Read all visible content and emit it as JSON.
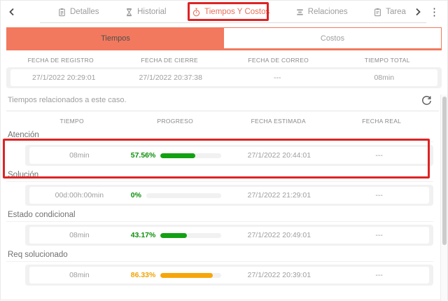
{
  "colors": {
    "salmon_accent": "#F2795E",
    "active_tab_text": "#E8705A",
    "annotation_red": "#DE2323",
    "green_bar": "#12A112",
    "green_text": "#0A8F0A",
    "orange_bar": "#F7A60A",
    "orange_text": "#EFA303"
  },
  "icons": {
    "back": "chevron-left",
    "forward": "chevron-right",
    "menu": "kebab-vertical-dots",
    "refresh": "circular-arrow",
    "detalles": "clipboard",
    "historial": "hourglass",
    "tiempos_y_costos": "stopwatch",
    "relaciones": "hierarchy-bars",
    "tarea": "task-clipboard"
  },
  "main_tabs": {
    "items": [
      {
        "label": "Detalles",
        "active": false
      },
      {
        "label": "Historial",
        "active": false
      },
      {
        "label": "Tiempos Y Costos",
        "active": true
      },
      {
        "label": "Relaciones",
        "active": false
      },
      {
        "label": "Tarea",
        "active": false
      }
    ]
  },
  "sub_tabs": {
    "left": "Tiempos",
    "right": "Costos",
    "active": "Tiempos"
  },
  "summary_table": {
    "headers": [
      "FECHA DE REGISTRO",
      "FECHA DE CIERRE",
      "FECHA DE CORREO",
      "TIEMPO TOTAL"
    ],
    "values": [
      "27/1/2022 20:29:01",
      "27/1/2022 20:37:38",
      "---",
      "08min"
    ]
  },
  "related": {
    "title": "Tiempos relacionados a este caso."
  },
  "times_table": {
    "headers": [
      "TIEMPO",
      "PROGRESO",
      "FECHA ESTIMADA",
      "FECHA REAL"
    ],
    "sections": [
      {
        "name": "Atención",
        "tiempo": "08min",
        "progress_label": "57.56%",
        "progress_value": 57.56,
        "color": "green",
        "fecha_estimada": "27/1/2022 20:44:01",
        "fecha_real": "---",
        "highlighted": true
      },
      {
        "name": "Solución",
        "tiempo": "00d:00h:00min",
        "progress_label": "0%",
        "progress_value": 0,
        "color": "green",
        "fecha_estimada": "27/1/2022 21:29:01",
        "fecha_real": "---",
        "highlighted": false
      },
      {
        "name": "Estado condicional",
        "tiempo": "08min",
        "progress_label": "43.17%",
        "progress_value": 43.17,
        "color": "green",
        "fecha_estimada": "27/1/2022 20:49:01",
        "fecha_real": "---",
        "highlighted": false
      },
      {
        "name": "Req solucionado",
        "tiempo": "08min",
        "progress_label": "86.33%",
        "progress_value": 86.33,
        "color": "orange",
        "fecha_estimada": "27/1/2022 20:39:01",
        "fecha_real": "---",
        "highlighted": false
      }
    ]
  }
}
